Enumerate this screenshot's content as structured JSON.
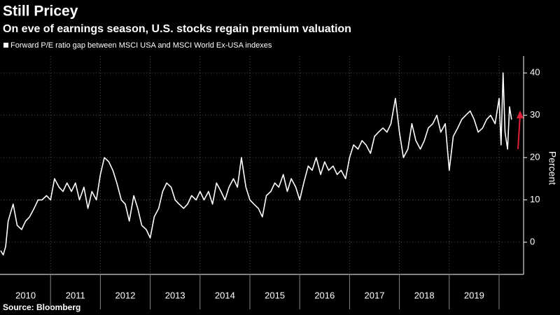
{
  "chart_data": {
    "type": "line",
    "title": "Still Pricey",
    "subtitle": "On eve of earnings season, U.S. stocks regain premium valuation",
    "y_label": "Percent",
    "source": "Source: Bloomberg",
    "x": [
      2010.0,
      2010.05,
      2010.1,
      2010.15,
      2010.2,
      2010.25,
      2010.33,
      2010.42,
      2010.5,
      2010.58,
      2010.67,
      2010.75,
      2010.83,
      2010.92,
      2011.0,
      2011.08,
      2011.17,
      2011.25,
      2011.33,
      2011.42,
      2011.5,
      2011.58,
      2011.67,
      2011.75,
      2011.83,
      2011.92,
      2012.0,
      2012.08,
      2012.17,
      2012.25,
      2012.33,
      2012.42,
      2012.5,
      2012.58,
      2012.67,
      2012.75,
      2012.83,
      2012.92,
      2013.0,
      2013.08,
      2013.17,
      2013.25,
      2013.33,
      2013.42,
      2013.5,
      2013.58,
      2013.67,
      2013.75,
      2013.83,
      2013.92,
      2014.0,
      2014.08,
      2014.17,
      2014.25,
      2014.33,
      2014.42,
      2014.5,
      2014.58,
      2014.67,
      2014.75,
      2014.83,
      2014.92,
      2015.0,
      2015.08,
      2015.17,
      2015.25,
      2015.33,
      2015.42,
      2015.5,
      2015.58,
      2015.67,
      2015.75,
      2015.83,
      2015.92,
      2016.0,
      2016.08,
      2016.17,
      2016.25,
      2016.33,
      2016.42,
      2016.5,
      2016.58,
      2016.67,
      2016.75,
      2016.83,
      2016.92,
      2017.0,
      2017.08,
      2017.17,
      2017.25,
      2017.33,
      2017.42,
      2017.5,
      2017.58,
      2017.67,
      2017.75,
      2017.83,
      2017.92,
      2018.0,
      2018.08,
      2018.17,
      2018.25,
      2018.33,
      2018.42,
      2018.5,
      2018.58,
      2018.67,
      2018.75,
      2018.83,
      2018.92,
      2019.0,
      2019.08,
      2019.17,
      2019.25,
      2019.33,
      2019.42,
      2019.5,
      2019.58,
      2019.67,
      2019.75,
      2019.83,
      2019.92,
      2020.0,
      2020.04,
      2020.08,
      2020.12,
      2020.17,
      2020.21,
      2020.25
    ],
    "series": [
      {
        "name": "Forward P/E ratio gap between MSCI USA and MSCI World Ex-USA indexes",
        "color": "#ffffff",
        "values": [
          -2,
          -3,
          -1,
          5,
          7,
          9,
          4,
          3,
          5,
          6,
          8,
          10,
          10,
          11,
          10,
          15,
          13,
          12,
          14,
          12,
          14,
          10,
          13,
          8,
          12,
          10,
          16,
          20,
          19,
          17,
          14,
          10,
          9,
          5,
          11,
          8,
          4,
          3,
          1,
          6,
          8,
          12,
          14,
          13,
          10,
          9,
          8,
          9,
          11,
          10,
          12,
          10,
          12,
          9,
          14,
          12,
          10,
          13,
          15,
          13,
          20,
          13,
          10,
          9,
          8,
          6,
          11,
          12,
          14,
          13,
          16,
          12,
          15,
          13,
          10,
          14,
          18,
          17,
          20,
          16,
          19,
          17,
          18,
          16,
          17,
          15,
          20,
          23,
          22,
          24,
          23,
          21,
          25,
          26,
          27,
          26,
          28,
          34,
          26,
          20,
          22,
          28,
          24,
          22,
          24,
          27,
          28,
          30,
          26,
          28,
          17,
          25,
          27,
          29,
          30,
          31,
          29,
          26,
          27,
          29,
          30,
          28,
          34,
          23,
          40,
          26,
          22,
          32,
          29
        ]
      }
    ],
    "xlim": [
      2010,
      2020.45
    ],
    "xticks": [
      2010,
      2011,
      2012,
      2013,
      2014,
      2015,
      2016,
      2017,
      2018,
      2019
    ],
    "ylim": [
      -7.6,
      44
    ],
    "yticks": [
      0,
      10,
      20,
      30,
      40
    ],
    "grid": true
  }
}
